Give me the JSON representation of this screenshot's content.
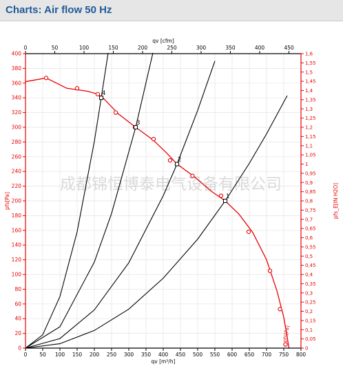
{
  "header": {
    "title": "Charts: Air flow 50 Hz"
  },
  "watermark": "成都锦恒博泰电气设备有限公司",
  "colors": {
    "black_axis": "#000000",
    "red_axis": "#e60000",
    "fan_curve": "#e60000",
    "system_curve": "#000000",
    "header_bg": "#e6e6e6",
    "header_text": "#1f5a98"
  },
  "chart_data": {
    "type": "line",
    "title": "",
    "grid": true,
    "x_bottom": {
      "label": "qv [m³/h]",
      "range": [
        0,
        800
      ],
      "ticks": [
        0,
        50,
        100,
        150,
        200,
        250,
        300,
        350,
        400,
        450,
        500,
        550,
        600,
        650,
        700,
        750,
        800
      ]
    },
    "x_top": {
      "label": "qv [cfm]",
      "range": [
        0,
        470.6
      ],
      "ticks": [
        0,
        50,
        100,
        150,
        200,
        250,
        300,
        350,
        400,
        450
      ]
    },
    "y_left": {
      "label": "pfs[Pa]",
      "range": [
        0,
        400
      ],
      "ticks": [
        0,
        20,
        40,
        60,
        80,
        100,
        120,
        140,
        160,
        180,
        200,
        220,
        240,
        260,
        280,
        300,
        320,
        340,
        360,
        380,
        400
      ]
    },
    "y_right": {
      "label": "pfs_E[IN H2O]",
      "range": [
        0,
        1.6
      ],
      "ticks": [
        "0",
        "0,05",
        "0,1",
        "0,15",
        "0,2",
        "0,25",
        "0,3",
        "0,35",
        "0,4",
        "0,45",
        "0,5",
        "0,55",
        "0,6",
        "0,65",
        "0,7",
        "0,75",
        "0,8",
        "0,85",
        "0,9",
        "0,95",
        "1",
        "1,05",
        "1,1",
        "1,15",
        "1,2",
        "1,25",
        "1,3",
        "1,35",
        "1,4",
        "1,45",
        "1,5",
        "1,55",
        "1,6"
      ]
    },
    "series": [
      {
        "name": "pfs[Pa]",
        "color": "#e60000",
        "x": [
          0,
          60,
          120,
          180,
          210,
          225,
          270,
          320,
          370,
          410,
          440,
          490,
          540,
          580,
          620,
          660,
          700,
          730,
          750,
          760,
          765
        ],
        "y": [
          362,
          367,
          353,
          349,
          345,
          340,
          318,
          300,
          283,
          265,
          250,
          233,
          213,
          200,
          182,
          157,
          120,
          78,
          42,
          15,
          0
        ],
        "markers_x": [
          60,
          150,
          210,
          262,
          318,
          372,
          420,
          485,
          568,
          648,
          710,
          739,
          755
        ],
        "markers_y": [
          367,
          353,
          345,
          320,
          300,
          284,
          255,
          234,
          207,
          158,
          105,
          53,
          5
        ]
      },
      {
        "name": "1",
        "color": "#000000",
        "x": [
          0,
          100,
          200,
          300,
          400,
          500,
          580,
          650,
          700,
          760
        ],
        "y": [
          0,
          6,
          24,
          53,
          95,
          148,
          200,
          251,
          291,
          343
        ]
      },
      {
        "name": "2",
        "color": "#000000",
        "x": [
          0,
          100,
          200,
          300,
          400,
          440,
          500,
          550
        ],
        "y": [
          0,
          13,
          52,
          116,
          207,
          250,
          323,
          390
        ]
      },
      {
        "name": "3",
        "color": "#000000",
        "x": [
          0,
          100,
          200,
          250,
          320,
          370
        ],
        "y": [
          0,
          29,
          117,
          183,
          300,
          401
        ]
      },
      {
        "name": "4",
        "color": "#000000",
        "x": [
          0,
          50,
          100,
          150,
          200,
          220,
          240
        ],
        "y": [
          0,
          18,
          70,
          158,
          281,
          340,
          401
        ]
      }
    ],
    "operating_points": [
      {
        "label": "1",
        "x": 580,
        "y": 200
      },
      {
        "label": "2",
        "x": 440,
        "y": 250
      },
      {
        "label": "3",
        "x": 320,
        "y": 300
      },
      {
        "label": "4",
        "x": 220,
        "y": 340
      }
    ],
    "annotations": [
      "pfs[Pa]"
    ]
  }
}
